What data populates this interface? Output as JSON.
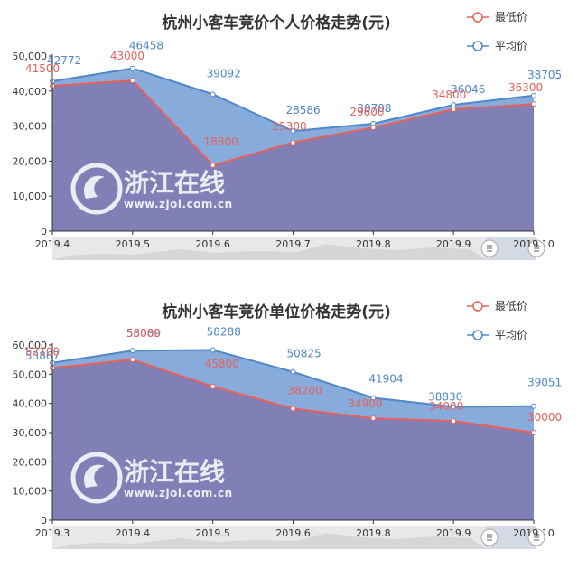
{
  "chart_data": [
    {
      "type": "area",
      "title": "杭州小客车竞价个人价格走势(元)",
      "categories": [
        "2019.4",
        "2019.5",
        "2019.6",
        "2019.7",
        "2019.8",
        "2019.9",
        "2019.10"
      ],
      "y_ticks": [
        "0",
        "10,000",
        "20,000",
        "30,000",
        "40,000",
        "50,000"
      ],
      "ylim": [
        0,
        50000
      ],
      "grid": false,
      "legend_position": "top-right",
      "series": [
        {
          "name": "最低价",
          "color": "#e8605a",
          "values": [
            41500,
            43000,
            18800,
            25300,
            29600,
            34800,
            36300
          ],
          "labels": [
            "41500",
            "43000",
            "18800",
            "25300",
            "29600",
            "34800",
            "36300"
          ]
        },
        {
          "name": "平均价",
          "color": "#4f87c8",
          "values": [
            42772,
            46458,
            39092,
            28586,
            30708,
            36046,
            38705
          ],
          "labels": [
            "42772",
            "46458",
            "39092",
            "28586",
            "30708",
            "36046",
            "38705"
          ]
        }
      ]
    },
    {
      "type": "area",
      "title": "杭州小客车竞价单位价格走势(元)",
      "categories": [
        "2019.3",
        "2019.4",
        "2019.5",
        "2019.6",
        "2019.8",
        "2019.9",
        "2019.10"
      ],
      "y_ticks": [
        "0",
        "10,000",
        "20,000",
        "30,000",
        "40,000",
        "50,000",
        "60,000"
      ],
      "ylim": [
        0,
        60000
      ],
      "grid": false,
      "legend_position": "top-right",
      "series": [
        {
          "name": "最低价",
          "color": "#e8605a",
          "values": [
            52100,
            55000,
            45800,
            38200,
            34900,
            34000,
            30000
          ],
          "labels": [
            "52100",
            "55000",
            "45800",
            "38200",
            "34900",
            "34000",
            "30000"
          ]
        },
        {
          "name": "平均价",
          "color": "#4f87c8",
          "values": [
            53867,
            58089,
            58288,
            50825,
            41904,
            38830,
            39051
          ],
          "labels": [
            "53867",
            "58089",
            "58288",
            "50825",
            "41904",
            "38830",
            "39051"
          ]
        }
      ]
    }
  ],
  "watermark": {
    "logo_icon": "zjol-swirl-logo-icon",
    "name": "浙江在线",
    "url": "www.zjol.com.cn"
  },
  "data_zoom": {
    "handle_icon": "data-zoom-handle-icon"
  },
  "colors": {
    "low_fill": "#8180b6",
    "avg_fill": "#87abdb",
    "axis": "#333333",
    "zoom_bg": "#e8e8e8",
    "zoom_selected": "#d0d8e6"
  }
}
